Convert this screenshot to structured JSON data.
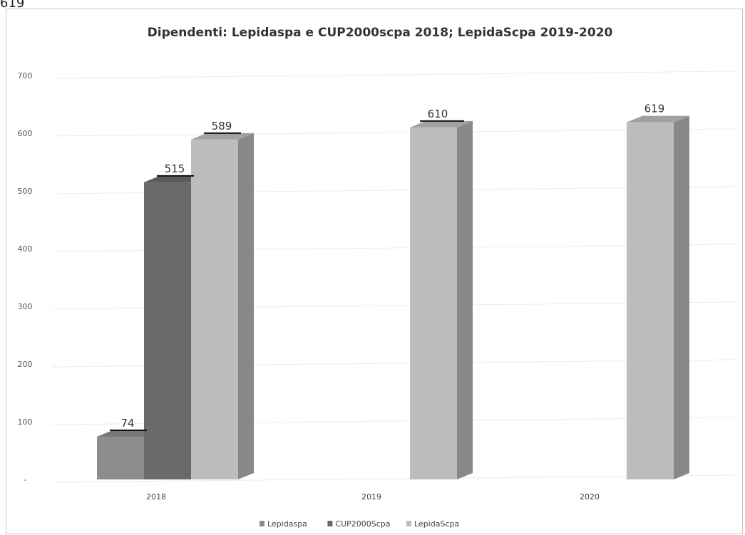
{
  "top_fragment": "619",
  "chart_data": {
    "type": "bar",
    "title": "Dipendenti: Lepidaspa e CUP2000scpa 2018; LepidaScpa 2019-2020",
    "categories": [
      "2018",
      "2019",
      "2020"
    ],
    "series": [
      {
        "name": "Lepidaspa",
        "values": [
          74,
          null,
          null
        ],
        "color": "#8c8c8c"
      },
      {
        "name": "CUP2000Scpa",
        "values": [
          515,
          null,
          null
        ],
        "color": "#6a6a6a"
      },
      {
        "name": "LepidaScpa",
        "values": [
          589,
          610,
          619
        ],
        "color": "#bdbdbd"
      }
    ],
    "yticks": [
      "",
      "100",
      "200",
      "300",
      "400",
      "500",
      "600",
      "700"
    ],
    "ylim": [
      0,
      700
    ],
    "grid": true,
    "legend_position": "bottom"
  }
}
